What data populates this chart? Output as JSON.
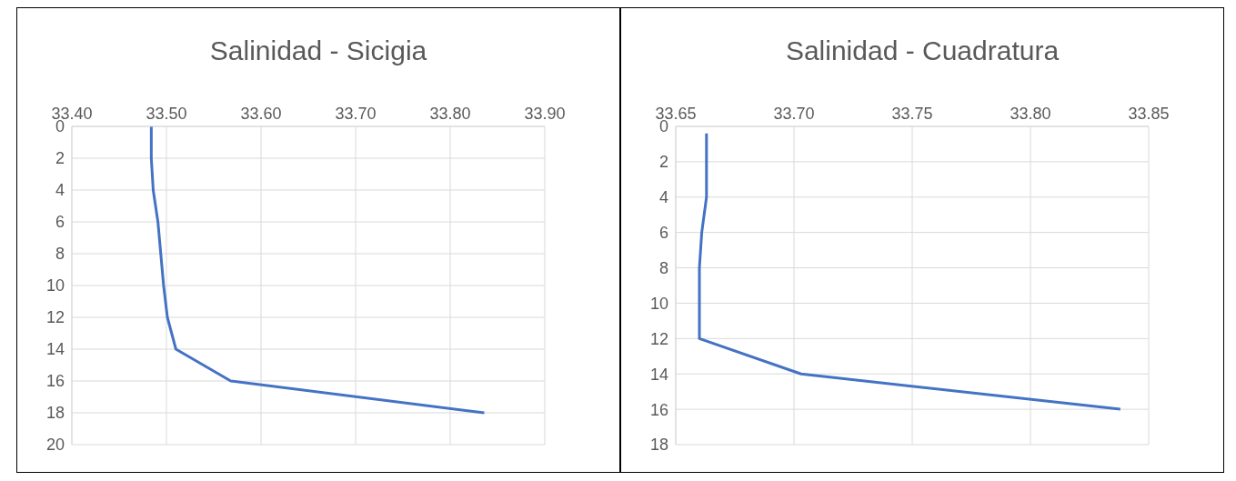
{
  "chart_data": [
    {
      "type": "line",
      "title": "Salinidad - Sicigia",
      "xlim": [
        33.4,
        33.9
      ],
      "xticks": [
        {
          "value": 33.4,
          "label": "33.40"
        },
        {
          "value": 33.5,
          "label": "33.50"
        },
        {
          "value": 33.6,
          "label": "33.60"
        },
        {
          "value": 33.7,
          "label": "33.70"
        },
        {
          "value": 33.8,
          "label": "33.80"
        },
        {
          "value": 33.9,
          "label": "33.90"
        }
      ],
      "ylim": [
        20,
        0
      ],
      "yticks": [
        0,
        2,
        4,
        6,
        8,
        10,
        12,
        14,
        16,
        18,
        20
      ],
      "grid": true,
      "series": [
        {
          "color": "#4472c4",
          "x": [
            33.484,
            33.484,
            33.486,
            33.491,
            33.494,
            33.497,
            33.501,
            33.51,
            33.568,
            33.836
          ],
          "values": [
            0,
            2,
            4,
            6,
            8,
            10,
            12,
            14,
            16,
            18
          ]
        }
      ]
    },
    {
      "type": "line",
      "title": "Salinidad - Cuadratura",
      "xlim": [
        33.65,
        33.85
      ],
      "xticks": [
        {
          "value": 33.65,
          "label": "33.65"
        },
        {
          "value": 33.7,
          "label": "33.70"
        },
        {
          "value": 33.75,
          "label": "33.75"
        },
        {
          "value": 33.8,
          "label": "33.80"
        },
        {
          "value": 33.85,
          "label": "33.85"
        }
      ],
      "ylim": [
        18,
        0
      ],
      "yticks": [
        0,
        2,
        4,
        6,
        8,
        10,
        12,
        14,
        16,
        18
      ],
      "grid": true,
      "series": [
        {
          "color": "#4472c4",
          "x": [
            33.663,
            33.663,
            33.663,
            33.661,
            33.66,
            33.66,
            33.66,
            33.703,
            33.838
          ],
          "values": [
            0.4,
            2,
            4,
            6,
            8,
            10,
            12,
            14,
            16
          ]
        }
      ]
    }
  ]
}
